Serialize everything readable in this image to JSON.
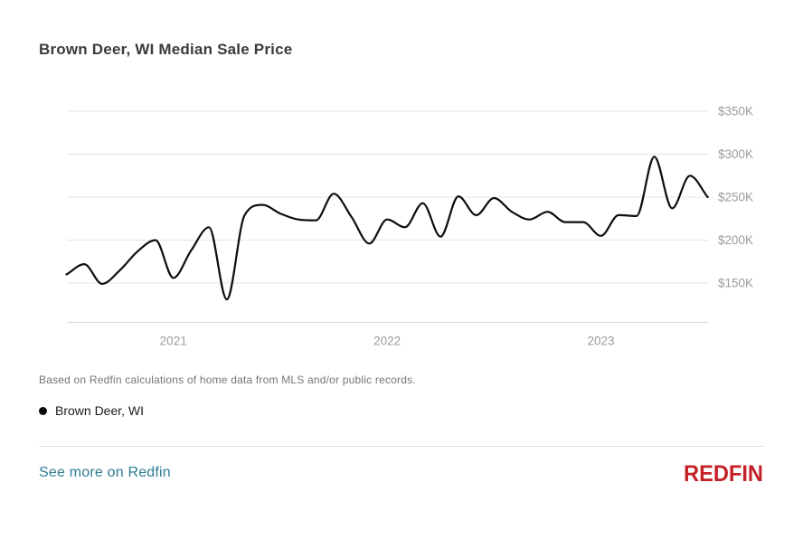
{
  "header": {
    "title": "Brown Deer, WI Median Sale Price"
  },
  "chart_data": {
    "type": "line",
    "title": "Brown Deer, WI Median Sale Price",
    "unit": "USD thousands",
    "x": [
      "2020-07",
      "2020-08",
      "2020-09",
      "2020-10",
      "2020-11",
      "2020-12",
      "2021-01",
      "2021-02",
      "2021-03",
      "2021-04",
      "2021-05",
      "2021-06",
      "2021-07",
      "2021-08",
      "2021-09",
      "2021-10",
      "2021-11",
      "2021-12",
      "2022-01",
      "2022-02",
      "2022-03",
      "2022-04",
      "2022-05",
      "2022-06",
      "2022-07",
      "2022-08",
      "2022-09",
      "2022-10",
      "2022-11",
      "2022-12",
      "2023-01",
      "2023-02",
      "2023-03",
      "2023-04",
      "2023-05",
      "2023-06",
      "2023-07"
    ],
    "series": [
      {
        "name": "Brown Deer, WI",
        "color": "#0d0d0d",
        "values": [
          160,
          172,
          149,
          165,
          187,
          200,
          156,
          188,
          215,
          131,
          229,
          241,
          231,
          224,
          223,
          254,
          227,
          196,
          224,
          215,
          243,
          204,
          251,
          229,
          249,
          233,
          224,
          233,
          221,
          221,
          205,
          229,
          228,
          297,
          237,
          275,
          250
        ]
      }
    ],
    "y_ticks": [
      150,
      200,
      250,
      300,
      350
    ],
    "y_tick_labels": [
      "$150K",
      "$200K",
      "$250K",
      "$300K",
      "$350K"
    ],
    "x_ticks": [
      {
        "label": "2021",
        "month_index": 6
      },
      {
        "label": "2022",
        "month_index": 18
      },
      {
        "label": "2023",
        "month_index": 30
      }
    ],
    "ylim": [
      104,
      363
    ],
    "grid": "horizontal",
    "legend_position": "below-left"
  },
  "footer": {
    "disclaimer": "Based on Redfin calculations of home data from MLS and/or public records.",
    "legend_label": "Brown Deer, WI",
    "link_label": "See more on Redfin",
    "logo_text": "REDFIN"
  },
  "colors": {
    "line": "#0d0d0d",
    "gridline": "#e4e4e4",
    "axis_line": "#d9d9d9",
    "tick_label": "#9b9b9b",
    "link": "#2b7d95",
    "logo_red": "#c42127",
    "title_text": "#3b3b3b",
    "disclaimer_text": "#757575"
  }
}
